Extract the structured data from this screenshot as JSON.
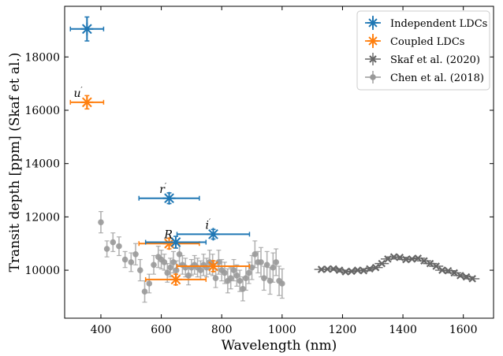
{
  "chart_data": {
    "type": "scatter",
    "xlabel": "Wavelength (nm)",
    "ylabel": "Transit depth [ppm] (Skaf et al.)",
    "xlim": [
      280,
      1700
    ],
    "ylim": [
      8200,
      19900
    ],
    "xticks": [
      400,
      600,
      800,
      1000,
      1200,
      1400,
      1600
    ],
    "yticks": [
      10000,
      12000,
      14000,
      16000,
      18000
    ],
    "grid": false,
    "legend_position": "top-right",
    "series": [
      {
        "name": "Independent LDCs",
        "color": "#1f77b4",
        "marker": "star",
        "points": [
          {
            "x": 354,
            "y": 19050,
            "xerr": 55,
            "yerr": 450
          },
          {
            "x": 626,
            "y": 12700,
            "xerr": 100,
            "yerr": 200
          },
          {
            "x": 648,
            "y": 11050,
            "xerr": 100,
            "yerr": 220
          },
          {
            "x": 772,
            "y": 11350,
            "xerr": 120,
            "yerr": 180
          }
        ]
      },
      {
        "name": "Coupled LDCs",
        "color": "#ff7f0e",
        "marker": "star",
        "points": [
          {
            "x": 354,
            "y": 16300,
            "xerr": 55,
            "yerr": 250
          },
          {
            "x": 626,
            "y": 11000,
            "xerr": 100,
            "yerr": 200
          },
          {
            "x": 648,
            "y": 9650,
            "xerr": 100,
            "yerr": 200
          },
          {
            "x": 772,
            "y": 10150,
            "xerr": 120,
            "yerr": 200
          }
        ]
      },
      {
        "name": "Skaf et al. (2020)",
        "color": "#666666",
        "marker": "x",
        "x": [
          1130,
          1150,
          1170,
          1190,
          1210,
          1230,
          1250,
          1270,
          1290,
          1310,
          1330,
          1350,
          1370,
          1390,
          1410,
          1430,
          1450,
          1470,
          1490,
          1510,
          1530,
          1550,
          1570,
          1590,
          1610,
          1630
        ],
        "y": [
          10030,
          10040,
          10050,
          10000,
          9940,
          9960,
          10000,
          9980,
          10050,
          10100,
          10250,
          10420,
          10500,
          10480,
          10400,
          10420,
          10450,
          10350,
          10250,
          10150,
          10000,
          9980,
          9900,
          9800,
          9750,
          9680
        ]
      },
      {
        "name": "Chen et al. (2018)",
        "color": "#999999",
        "marker": "circle",
        "x": [
          400,
          420,
          440,
          460,
          480,
          500,
          515,
          530,
          545,
          560,
          575,
          590,
          600,
          610,
          620,
          630,
          640,
          650,
          660,
          670,
          680,
          690,
          700,
          710,
          720,
          730,
          740,
          750,
          760,
          770,
          780,
          790,
          800,
          810,
          820,
          830,
          840,
          850,
          860,
          870,
          880,
          890,
          900,
          910,
          920,
          930,
          940,
          950,
          960,
          970,
          980,
          990,
          1000
        ],
        "y": [
          11800,
          10800,
          11050,
          10900,
          10400,
          10300,
          10600,
          10000,
          9200,
          9500,
          10200,
          10500,
          10400,
          10300,
          9900,
          10100,
          10300,
          10000,
          10600,
          10200,
          10100,
          9800,
          10100,
          10200,
          10100,
          10000,
          10200,
          10100,
          10300,
          10200,
          9700,
          10300,
          10000,
          9900,
          9600,
          9700,
          10000,
          9800,
          9600,
          9300,
          9700,
          9900,
          10100,
          10600,
          10300,
          10300,
          9700,
          10200,
          9600,
          10100,
          10300,
          9600,
          9500
        ],
        "yerr": [
          400,
          300,
          350,
          350,
          300,
          350,
          400,
          400,
          400,
          350,
          350,
          400,
          350,
          300,
          350,
          350,
          400,
          350,
          400,
          350,
          350,
          350,
          300,
          350,
          350,
          350,
          400,
          350,
          450,
          400,
          350,
          450,
          400,
          400,
          450,
          400,
          400,
          400,
          400,
          450,
          450,
          400,
          450,
          500,
          400,
          550,
          450,
          500,
          500,
          550,
          500,
          550,
          550
        ]
      }
    ],
    "annotations": [
      {
        "text": "u",
        "x": 310,
        "y": 16500
      },
      {
        "text": "r",
        "x": 594,
        "y": 12900
      },
      {
        "text": "R",
        "x": 610,
        "y": 11200
      },
      {
        "text": "i",
        "x": 746,
        "y": 11550
      }
    ]
  }
}
